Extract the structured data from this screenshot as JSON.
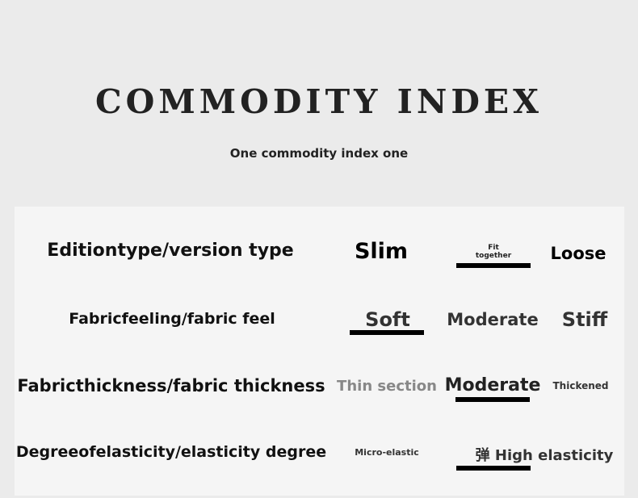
{
  "header": {
    "title": "COMMODITY INDEX",
    "subtitle": "One commodity index one"
  },
  "rows": [
    {
      "label": "Editiontype/version type",
      "options": [
        "Slim",
        "Fit together",
        "Loose"
      ],
      "selected": 1
    },
    {
      "label": "Fabricfeeling/fabric feel",
      "options": [
        "Soft",
        "Moderate",
        "Stiff"
      ],
      "selected": 0
    },
    {
      "label": "Fabricthickness/fabric thickness",
      "options": [
        "Thin section",
        "Moderate",
        "Thickened"
      ],
      "selected": 1
    },
    {
      "label": "Degreeofelasticity/elasticity degree",
      "options": [
        "Micro-elastic",
        "弹 High elasticity"
      ],
      "selected": 1
    }
  ]
}
